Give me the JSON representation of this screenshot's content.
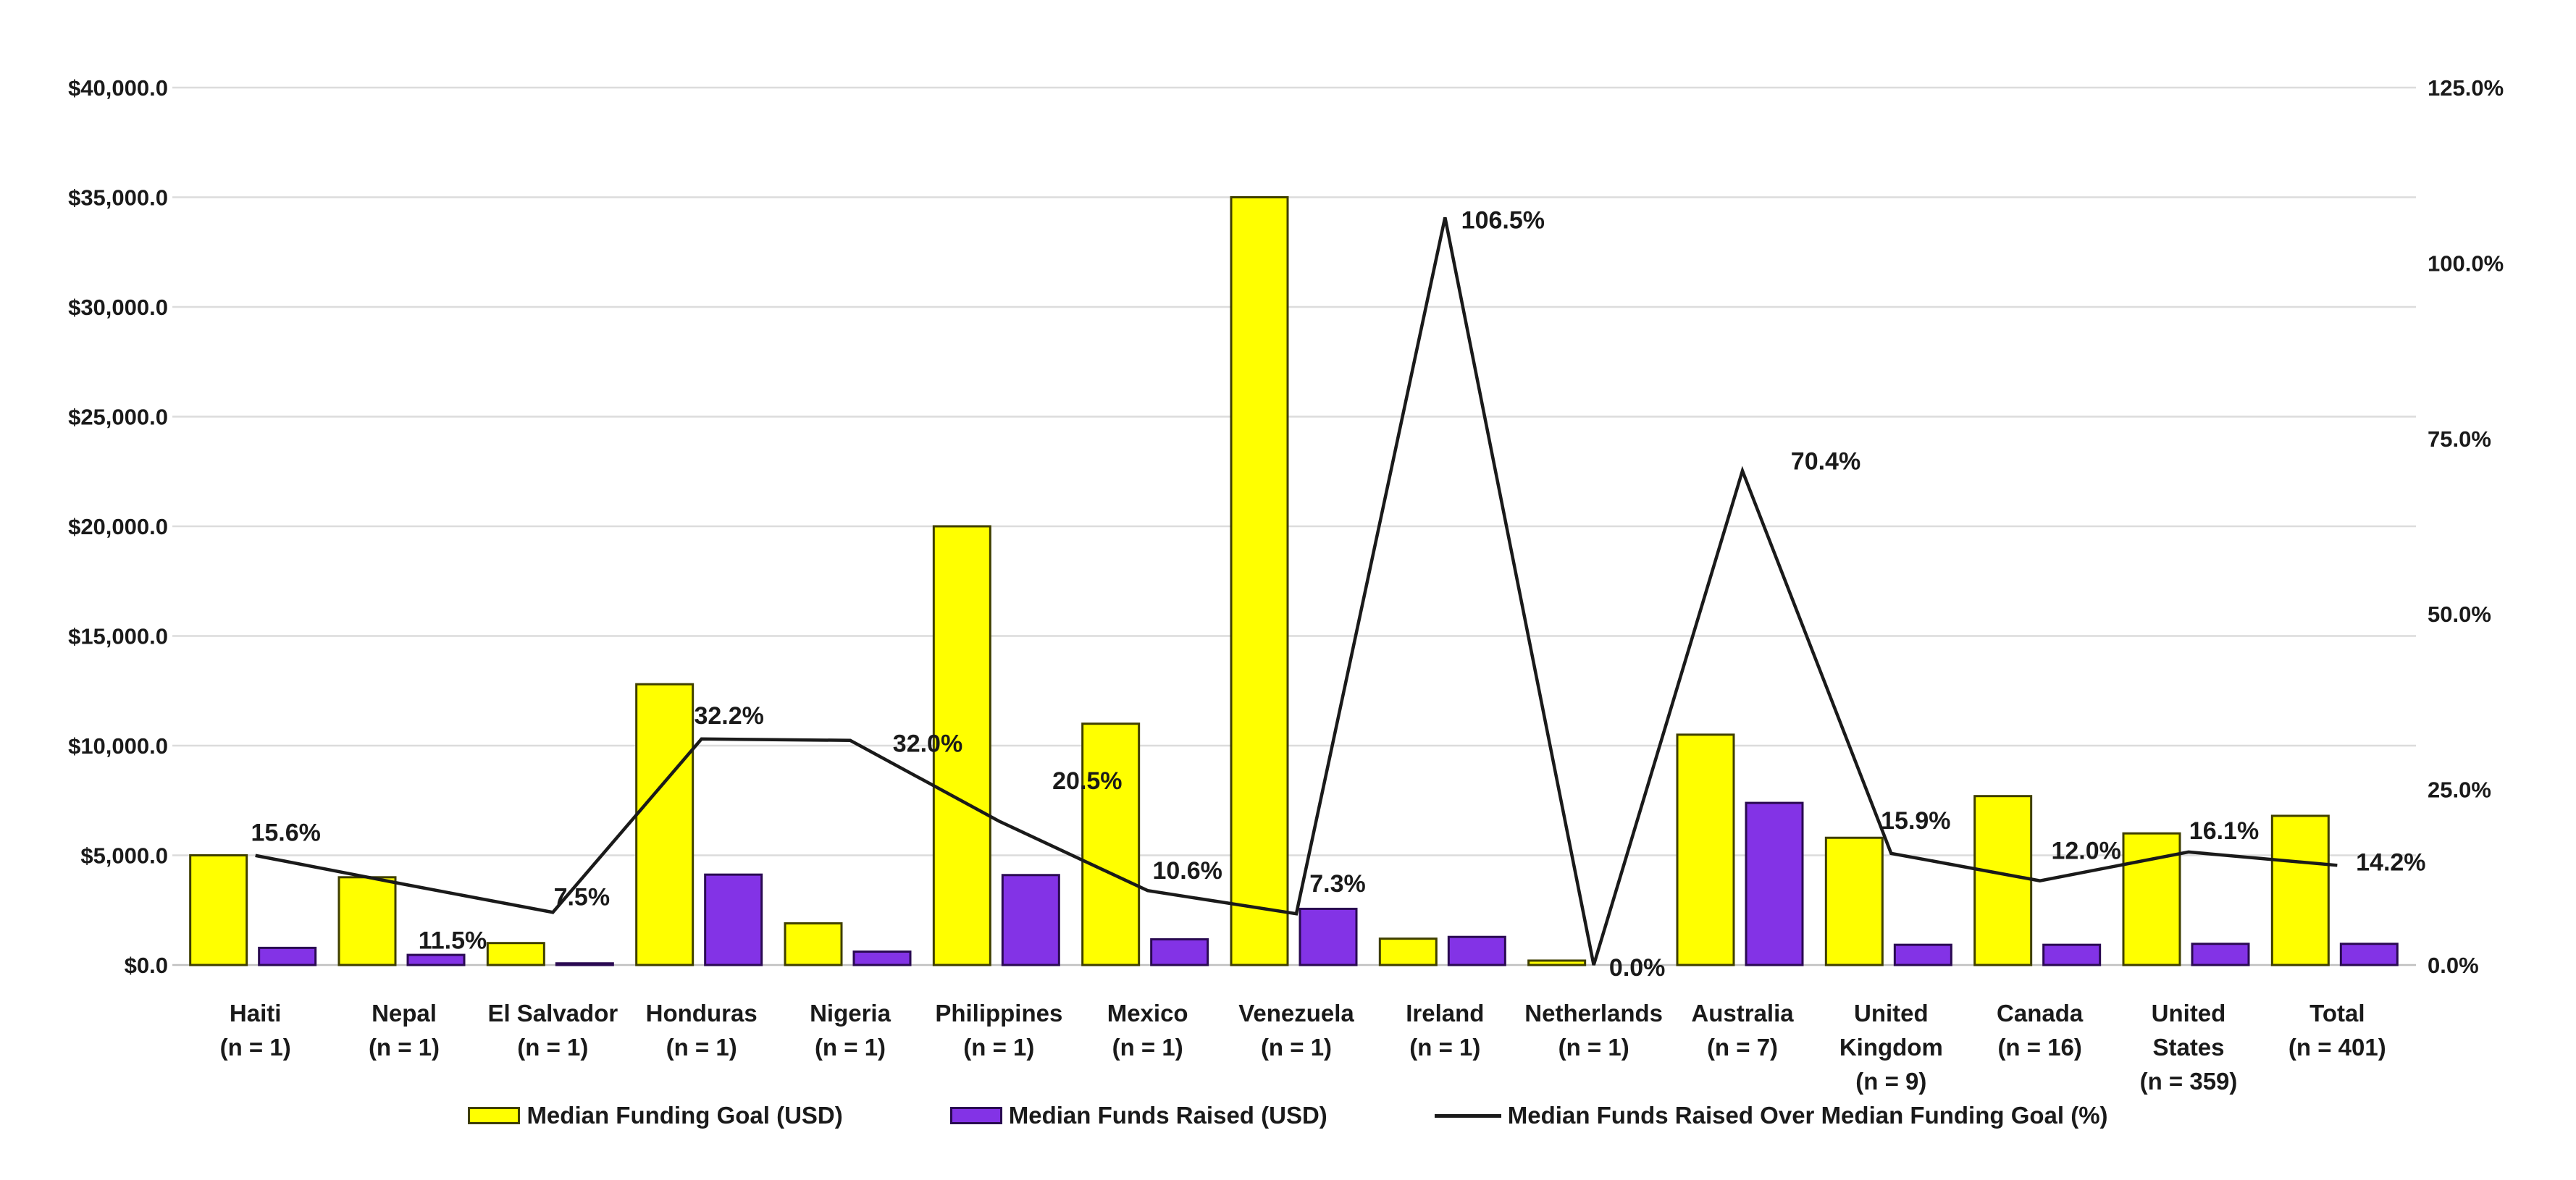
{
  "chart_data": {
    "type": "bar",
    "subtype": "combo-bar-line-dual-axis",
    "title": "",
    "categories": [
      {
        "name": "Haiti",
        "n": 1,
        "label_lines": [
          "Haiti",
          "(n = 1)"
        ]
      },
      {
        "name": "Nepal",
        "n": 1,
        "label_lines": [
          "Nepal",
          "(n = 1)"
        ]
      },
      {
        "name": "El Salvador",
        "n": 1,
        "label_lines": [
          "El Salvador",
          "(n = 1)"
        ]
      },
      {
        "name": "Honduras",
        "n": 1,
        "label_lines": [
          "Honduras",
          "(n = 1)"
        ]
      },
      {
        "name": "Nigeria",
        "n": 1,
        "label_lines": [
          "Nigeria",
          "(n = 1)"
        ]
      },
      {
        "name": "Philippines",
        "n": 1,
        "label_lines": [
          "Philippines",
          "(n = 1)"
        ]
      },
      {
        "name": "Mexico",
        "n": 1,
        "label_lines": [
          "Mexico",
          "(n = 1)"
        ]
      },
      {
        "name": "Venezuela",
        "n": 1,
        "label_lines": [
          "Venezuela",
          "(n = 1)"
        ]
      },
      {
        "name": "Ireland",
        "n": 1,
        "label_lines": [
          "Ireland",
          "(n = 1)"
        ]
      },
      {
        "name": "Netherlands",
        "n": 1,
        "label_lines": [
          "Netherlands",
          "(n = 1)"
        ]
      },
      {
        "name": "Australia",
        "n": 7,
        "label_lines": [
          "Australia",
          "(n = 7)"
        ]
      },
      {
        "name": "United Kingdom",
        "n": 9,
        "label_lines": [
          "United",
          "Kingdom",
          "(n = 9)"
        ]
      },
      {
        "name": "Canada",
        "n": 16,
        "label_lines": [
          "Canada",
          "(n = 16)"
        ]
      },
      {
        "name": "United States",
        "n": 359,
        "label_lines": [
          "United",
          "States",
          "(n = 359)"
        ]
      },
      {
        "name": "Total",
        "n": 401,
        "label_lines": [
          "Total",
          "(n = 401)"
        ]
      }
    ],
    "series": [
      {
        "name": "Median Funding Goal (USD)",
        "type": "bar",
        "axis": "left",
        "color": "#ffff00",
        "border_color": "#3f3f00",
        "values": [
          5000,
          4000,
          1000,
          12800,
          1900,
          20000,
          11000,
          35000,
          1200,
          200,
          10500,
          5800,
          7700,
          6000,
          6800
        ]
      },
      {
        "name": "Median Funds Raised (USD)",
        "type": "bar",
        "axis": "left",
        "color": "#8333e6",
        "border_color": "#2a0a52",
        "values": [
          780,
          460,
          75,
          4120,
          610,
          4100,
          1170,
          2560,
          1280,
          0,
          7390,
          920,
          920,
          965,
          965
        ]
      },
      {
        "name": "Median Funds Raised Over Median Funding Goal (%)",
        "type": "line",
        "axis": "right",
        "color": "#1a1a1a",
        "values": [
          15.6,
          11.5,
          7.5,
          32.2,
          32.0,
          20.5,
          10.6,
          7.3,
          106.5,
          0.0,
          70.4,
          15.9,
          12.0,
          16.1,
          14.2
        ],
        "point_labels": [
          "15.6%",
          "11.5%",
          "7.5%",
          "32.2%",
          "32.0%",
          "20.5%",
          "10.6%",
          "7.3%",
          "106.5%",
          "0.0%",
          "70.4%",
          "15.9%",
          "12.0%",
          "16.1%",
          "14.2%"
        ]
      }
    ],
    "left_axis": {
      "min": 0,
      "max": 40000,
      "step": 5000,
      "ticks": [
        "$0.0",
        "$5,000.0",
        "$10,000.0",
        "$15,000.0",
        "$20,000.0",
        "$25,000.0",
        "$30,000.0",
        "$35,000.0",
        "$40,000.0"
      ]
    },
    "right_axis": {
      "min": 0,
      "max": 125,
      "step": 25,
      "ticks": [
        "0.0%",
        "25.0%",
        "50.0%",
        "75.0%",
        "100.0%",
        "125.0%"
      ]
    },
    "grid": true,
    "gridline_color": "#dcdcdc",
    "baseline_color": "#c0c0c0",
    "legend_position": "bottom",
    "background_color": "#ffffff"
  }
}
